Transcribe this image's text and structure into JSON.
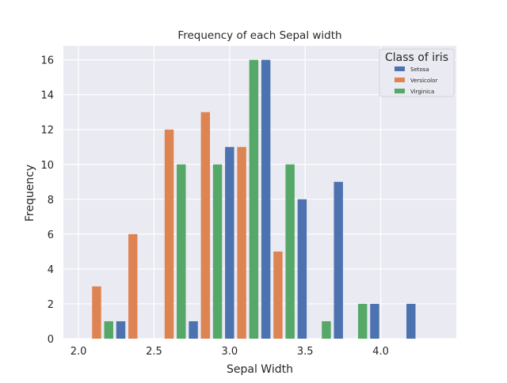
{
  "chart_data": {
    "type": "bar",
    "title": "Frequency of each Sepal width",
    "xlabel": "Sepal Width",
    "ylabel": "Frequency",
    "xlim": [
      1.9,
      4.5
    ],
    "ylim": [
      0,
      16.8
    ],
    "xticks": [
      "2.0",
      "2.5",
      "3.0",
      "3.5",
      "4.0"
    ],
    "yticks": [
      "0",
      "2",
      "4",
      "6",
      "8",
      "10",
      "12",
      "14",
      "16"
    ],
    "grid": true,
    "legend": {
      "title": "Class of iris",
      "placement": "top-right"
    },
    "bin_starts": [
      2.0,
      2.24,
      2.48,
      2.72,
      2.96,
      3.2,
      3.44,
      3.68,
      3.92,
      4.16
    ],
    "bin_width": 0.24,
    "series": [
      {
        "name": "Setosa",
        "color": "#4c72b0",
        "values": [
          0,
          1,
          0,
          1,
          11,
          16,
          8,
          9,
          2,
          2
        ]
      },
      {
        "name": "Versicolor",
        "color": "#dd8452",
        "values": [
          3,
          6,
          12,
          13,
          11,
          5,
          0,
          0,
          0,
          0
        ]
      },
      {
        "name": "Virginica",
        "color": "#55a868",
        "values": [
          1,
          0,
          10,
          10,
          16,
          10,
          1,
          2,
          0,
          0
        ]
      }
    ]
  }
}
